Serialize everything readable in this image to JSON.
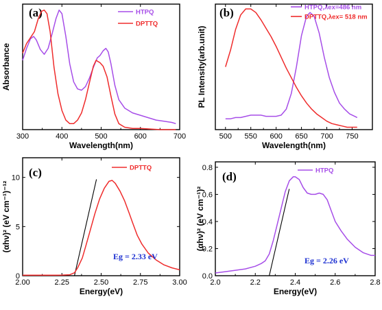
{
  "colors": {
    "htpq": "#a64de8",
    "dpttq": "#ef2b2b",
    "fit": "#000000",
    "annotation": "#1b2fd1"
  },
  "chart_data": [
    {
      "panel": "(a)",
      "type": "line",
      "xlabel": "Wavelength(nm)",
      "ylabel": "Absorbance",
      "xlim": [
        300,
        700
      ],
      "ylim": [
        0,
        1.05
      ],
      "xticks": [
        300,
        400,
        500,
        600,
        700
      ],
      "yticks": [],
      "legend_position": "top-right",
      "series": [
        {
          "name": "HTPQ",
          "color": "#a64de8",
          "x": [
            300,
            310,
            320,
            328,
            335,
            345,
            355,
            365,
            375,
            385,
            393,
            400,
            410,
            420,
            430,
            440,
            450,
            460,
            470,
            480,
            490,
            497,
            505,
            512,
            518,
            525,
            535,
            545,
            560,
            580,
            600,
            620,
            640,
            660,
            680,
            690
          ],
          "y": [
            0.58,
            0.68,
            0.76,
            0.78,
            0.75,
            0.67,
            0.63,
            0.68,
            0.8,
            0.93,
            1.0,
            0.97,
            0.78,
            0.55,
            0.4,
            0.34,
            0.33,
            0.36,
            0.43,
            0.52,
            0.6,
            0.62,
            0.66,
            0.68,
            0.65,
            0.55,
            0.37,
            0.25,
            0.18,
            0.14,
            0.12,
            0.1,
            0.08,
            0.07,
            0.06,
            0.05
          ]
        },
        {
          "name": "DPTTQ",
          "color": "#ef2b2b",
          "x": [
            300,
            310,
            320,
            330,
            340,
            348,
            355,
            362,
            370,
            380,
            390,
            400,
            410,
            420,
            430,
            440,
            450,
            460,
            470,
            480,
            487,
            492,
            497,
            505,
            515,
            525,
            535,
            545,
            560,
            580,
            600,
            650,
            690
          ],
          "y": [
            0.64,
            0.72,
            0.77,
            0.82,
            0.93,
            0.99,
            1.0,
            0.97,
            0.82,
            0.52,
            0.3,
            0.16,
            0.08,
            0.05,
            0.05,
            0.08,
            0.14,
            0.25,
            0.39,
            0.53,
            0.58,
            0.57,
            0.56,
            0.53,
            0.44,
            0.28,
            0.13,
            0.05,
            0.02,
            0.01,
            0.01,
            0.0,
            0.0
          ]
        }
      ]
    },
    {
      "panel": "(b)",
      "type": "line",
      "xlabel": "Wavelength(nm)",
      "ylabel": "PL Intensity(arb.unit)",
      "xlim": [
        480,
        790
      ],
      "ylim": [
        0,
        1.04
      ],
      "xticks": [
        500,
        550,
        600,
        650,
        700,
        750
      ],
      "yticks": [],
      "legend_position": "top-right",
      "series": [
        {
          "name": "HTPQ,λex=486 nm",
          "color": "#a64de8",
          "x": [
            500,
            510,
            520,
            530,
            540,
            550,
            560,
            570,
            580,
            590,
            600,
            610,
            620,
            630,
            640,
            650,
            660,
            667,
            675,
            685,
            695,
            705,
            715,
            725,
            735,
            745,
            755,
            760
          ],
          "y": [
            0.09,
            0.09,
            0.1,
            0.1,
            0.11,
            0.12,
            0.12,
            0.12,
            0.11,
            0.11,
            0.11,
            0.12,
            0.17,
            0.3,
            0.52,
            0.78,
            0.94,
            0.97,
            0.94,
            0.8,
            0.6,
            0.43,
            0.31,
            0.22,
            0.17,
            0.13,
            0.11,
            0.1
          ]
        },
        {
          "name": "DPTTQ,λex= 518 nm",
          "color": "#ef2b2b",
          "x": [
            500,
            510,
            520,
            530,
            540,
            550,
            560,
            570,
            580,
            590,
            600,
            610,
            620,
            630,
            640,
            650,
            660,
            670,
            680,
            690,
            700,
            710,
            720,
            730,
            740,
            750,
            760
          ],
          "y": [
            0.52,
            0.66,
            0.83,
            0.95,
            1.0,
            1.0,
            0.97,
            0.91,
            0.84,
            0.77,
            0.69,
            0.6,
            0.51,
            0.43,
            0.35,
            0.28,
            0.22,
            0.17,
            0.13,
            0.1,
            0.07,
            0.05,
            0.04,
            0.03,
            0.02,
            0.02,
            0.02
          ]
        }
      ]
    },
    {
      "panel": "(c)",
      "type": "line",
      "xlabel": "Energy(eV)",
      "ylabel": "(αhν)² (eV cm⁻¹)⁻¹²",
      "xlim": [
        2.0,
        3.0
      ],
      "ylim": [
        0,
        12
      ],
      "xticks": [
        "2.00",
        "2.25",
        "2.50",
        "2.75",
        "3.00"
      ],
      "yticks": [
        0,
        5,
        10
      ],
      "legend_position": "top-right",
      "annotation": "Eg = 2.33 eV",
      "fit_line": {
        "x": [
          2.33,
          2.47
        ],
        "y": [
          0,
          9.8
        ]
      },
      "series": [
        {
          "name": "DPTTQ",
          "color": "#ef2b2b",
          "x": [
            2.0,
            2.1,
            2.2,
            2.25,
            2.3,
            2.33,
            2.35,
            2.38,
            2.4,
            2.43,
            2.46,
            2.49,
            2.52,
            2.55,
            2.57,
            2.59,
            2.62,
            2.65,
            2.68,
            2.7,
            2.73,
            2.76,
            2.8,
            2.85,
            2.9,
            2.95,
            3.0
          ],
          "y": [
            0.05,
            0.05,
            0.05,
            0.06,
            0.1,
            0.3,
            0.8,
            1.8,
            2.9,
            4.6,
            6.3,
            7.8,
            8.9,
            9.6,
            9.7,
            9.4,
            8.6,
            7.6,
            6.3,
            5.4,
            4.1,
            3.2,
            2.3,
            1.6,
            1.1,
            0.8,
            0.6
          ]
        }
      ]
    },
    {
      "panel": "(d)",
      "type": "line",
      "xlabel": "Energy(eV)",
      "ylabel": "(αhν)² (eV cm⁻¹)²",
      "xlim": [
        2.0,
        2.8
      ],
      "ylim": [
        0,
        0.84
      ],
      "xticks": [
        "2.0",
        "2.2",
        "2.4",
        "2.6",
        "2.8"
      ],
      "yticks": [
        "0.0",
        "0.2",
        "0.4",
        "0.6",
        "0.8"
      ],
      "legend_position": "top-right",
      "annotation": "Eg = 2.26 eV",
      "fit_line": {
        "x": [
          2.27,
          2.37
        ],
        "y": [
          0,
          0.64
        ]
      },
      "series": [
        {
          "name": "HTPQ",
          "color": "#a64de8",
          "x": [
            2.0,
            2.05,
            2.1,
            2.15,
            2.2,
            2.23,
            2.25,
            2.27,
            2.29,
            2.31,
            2.33,
            2.35,
            2.37,
            2.39,
            2.4,
            2.42,
            2.44,
            2.46,
            2.48,
            2.5,
            2.52,
            2.54,
            2.56,
            2.58,
            2.6,
            2.63,
            2.66,
            2.7,
            2.74,
            2.78,
            2.8
          ],
          "y": [
            0.02,
            0.03,
            0.04,
            0.05,
            0.07,
            0.09,
            0.11,
            0.16,
            0.26,
            0.38,
            0.5,
            0.62,
            0.7,
            0.73,
            0.73,
            0.71,
            0.65,
            0.61,
            0.6,
            0.6,
            0.61,
            0.6,
            0.56,
            0.48,
            0.4,
            0.33,
            0.27,
            0.21,
            0.17,
            0.15,
            0.15
          ]
        }
      ]
    }
  ]
}
